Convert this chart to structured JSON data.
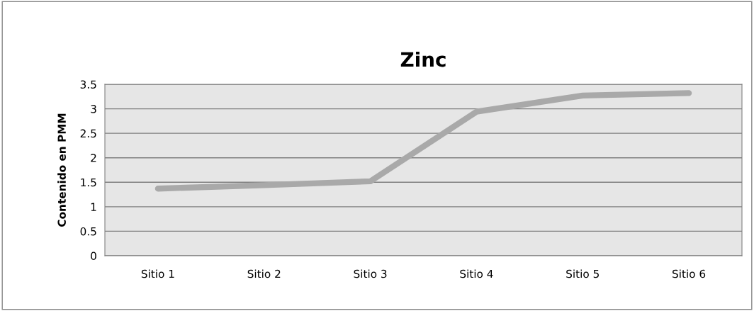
{
  "chart_data": {
    "type": "line",
    "title": "Zinc",
    "ylabel": "Contenido en PMM",
    "categories": [
      "Sitio 1",
      "Sitio 2",
      "Sitio 3",
      "Sitio 4",
      "Sitio 5",
      "Sitio 6"
    ],
    "series": [
      {
        "color": "#a9a9a9",
        "values": [
          1.37,
          1.44,
          1.52,
          2.94,
          3.27,
          3.32
        ]
      }
    ],
    "ylim": [
      0,
      3.5
    ],
    "yticks": [
      0,
      0.5,
      1,
      1.5,
      2,
      2.5,
      3,
      3.5
    ],
    "grid": "y",
    "legend": false,
    "marker": "none",
    "line_style": "solid"
  }
}
